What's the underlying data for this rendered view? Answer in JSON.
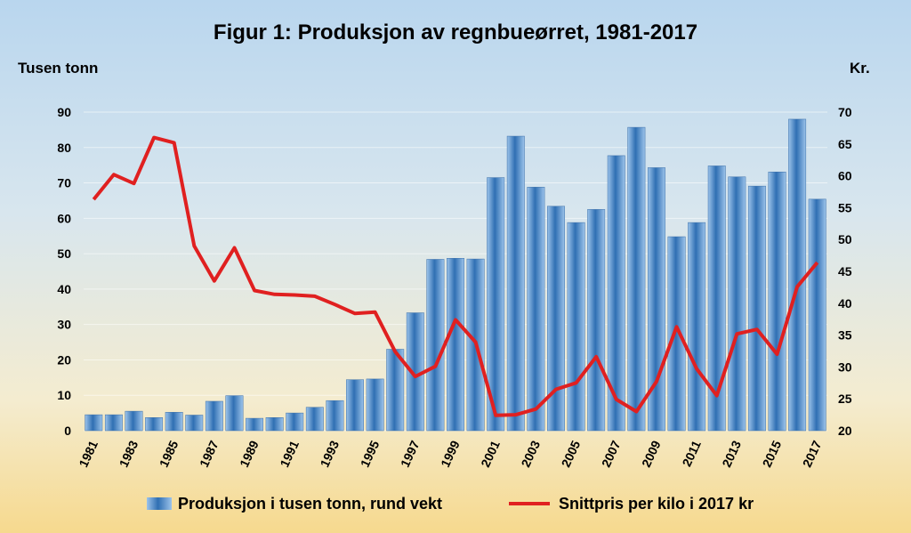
{
  "chart_data": {
    "type": "bar+line",
    "title": "Figur 1: Produksjon av regnbueørret, 1981-2017",
    "y_left_label": "Tusen tonn",
    "y_right_label": "Kr.",
    "y_left_range": [
      0,
      90
    ],
    "y_left_ticks": [
      "0",
      "10",
      "20",
      "30",
      "40",
      "50",
      "60",
      "70",
      "80",
      "90"
    ],
    "y_right_range": [
      20,
      70
    ],
    "y_right_ticks": [
      "20",
      "25",
      "30",
      "35",
      "40",
      "45",
      "50",
      "55",
      "60",
      "65",
      "70"
    ],
    "x_tick_labels": [
      "1981",
      "1983",
      "1985",
      "1987",
      "1989",
      "1991",
      "1993",
      "1995",
      "1997",
      "1999",
      "2001",
      "2003",
      "2005",
      "2007",
      "2009",
      "2011",
      "2013",
      "2015",
      "2017"
    ],
    "years": [
      1981,
      1982,
      1983,
      1984,
      1985,
      1986,
      1987,
      1988,
      1989,
      1990,
      1991,
      1992,
      1993,
      1994,
      1995,
      1996,
      1997,
      1998,
      1999,
      2000,
      2001,
      2002,
      2003,
      2004,
      2005,
      2006,
      2007,
      2008,
      2009,
      2010,
      2011,
      2012,
      2013,
      2014,
      2015,
      2016,
      2017
    ],
    "series": [
      {
        "name": "Produksjon i tusen tonn, rund vekt",
        "type": "bar",
        "axis": "left",
        "values": [
          4.5,
          4.5,
          5.5,
          3.7,
          5.2,
          4.4,
          8.3,
          9.9,
          3.5,
          3.7,
          5.0,
          6.6,
          8.5,
          14.4,
          14.6,
          23.0,
          33.3,
          48.4,
          48.7,
          48.5,
          71.5,
          83.2,
          68.8,
          63.4,
          58.8,
          62.5,
          77.7,
          85.7,
          74.3,
          54.8,
          58.8,
          74.8,
          71.7,
          69.1,
          73.1,
          88.0,
          65.4
        ],
        "color": "#4d86c4"
      },
      {
        "name": "Snittpris per kilo i 2017 kr",
        "type": "line",
        "axis": "right",
        "values": [
          56.3,
          60.2,
          58.8,
          66.0,
          65.2,
          49.0,
          43.5,
          48.7,
          42.0,
          41.4,
          41.3,
          41.1,
          39.8,
          38.4,
          38.6,
          32.4,
          28.5,
          30.1,
          37.4,
          33.9,
          22.4,
          22.5,
          23.4,
          26.5,
          27.5,
          31.6,
          24.9,
          23.0,
          27.7,
          36.3,
          29.7,
          25.5,
          35.2,
          35.9,
          32.0,
          42.6,
          46.4
        ],
        "color": "#e02020"
      }
    ],
    "legend_position": "bottom",
    "grid": true
  }
}
